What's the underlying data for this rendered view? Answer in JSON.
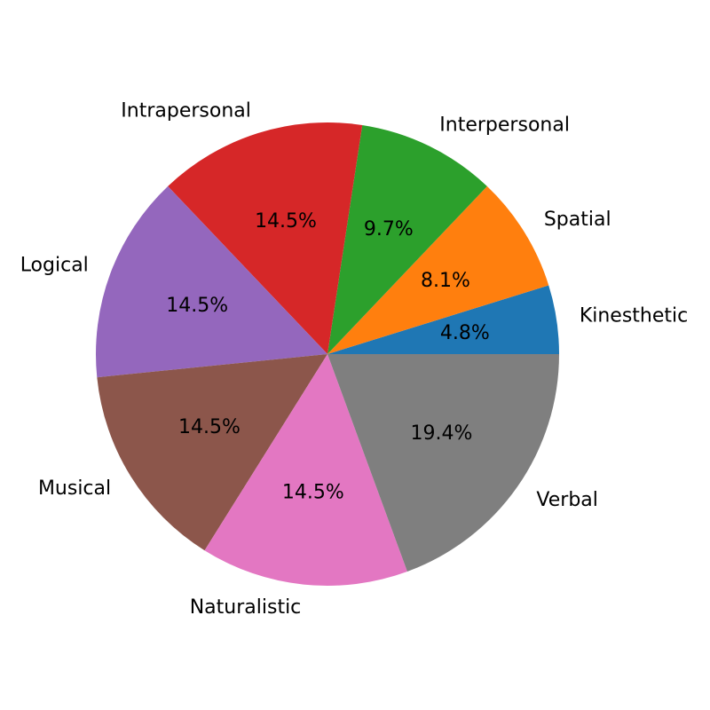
{
  "chart_data": {
    "type": "pie",
    "labels": [
      "Kinesthetic",
      "Spatial",
      "Interpersonal",
      "Intrapersonal",
      "Logical",
      "Musical",
      "Naturalistic",
      "Verbal"
    ],
    "values": [
      4.8,
      8.1,
      9.7,
      14.5,
      14.5,
      14.5,
      14.5,
      19.4
    ],
    "percent_labels": [
      "4.8%",
      "8.1%",
      "9.7%",
      "14.5%",
      "14.5%",
      "14.5%",
      "14.5%",
      "19.4%"
    ],
    "colors": [
      "#1f77b4",
      "#ff7f0e",
      "#2ca02c",
      "#d62728",
      "#9467bd",
      "#8c564b",
      "#e377c2",
      "#7f7f7f"
    ],
    "start_angle": 0,
    "direction": "counterclockwise",
    "legend": "none"
  }
}
